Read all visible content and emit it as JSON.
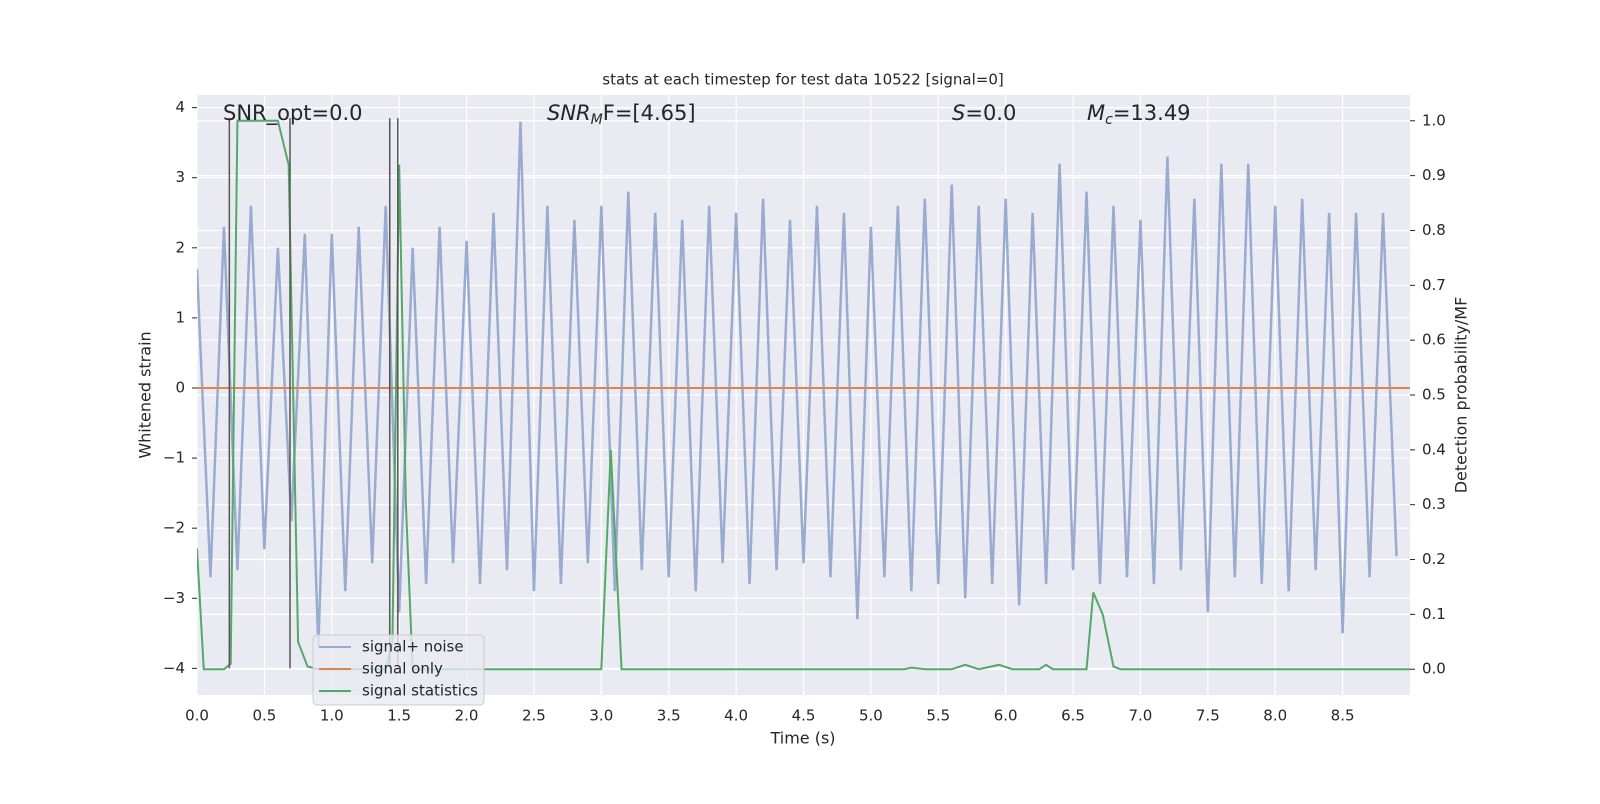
{
  "chart_data": {
    "type": "line",
    "title": "stats at each timestep for test data 10522 [signal=0]",
    "xlabel": "Time (s)",
    "ylabel": "Whitened strain",
    "y2label": "Detection probability/MF",
    "xlim": [
      0,
      9.0
    ],
    "ylim": [
      -4.38,
      4.18
    ],
    "y2lim": [
      -0.047,
      1.047
    ],
    "xticks": [
      {
        "value": 0,
        "label": "0.0"
      },
      0.5,
      {
        "value": 1,
        "label": "1.0"
      },
      1.5,
      {
        "value": 2,
        "label": "2.0"
      },
      2.5,
      {
        "value": 3,
        "label": "3.0"
      },
      3.5,
      {
        "value": 4,
        "label": "4.0"
      },
      4.5,
      {
        "value": 5,
        "label": "5.0"
      },
      5.5,
      {
        "value": 6,
        "label": "6.0"
      },
      6.5,
      {
        "value": 7,
        "label": "7.0"
      },
      7.5,
      {
        "value": 8,
        "label": "8.0"
      },
      8.5
    ],
    "yticks": [
      {
        "value": -4,
        "label": "−4"
      },
      {
        "value": -3,
        "label": "−3"
      },
      {
        "value": -2,
        "label": "−2"
      },
      {
        "value": -1,
        "label": "−1"
      },
      0,
      1,
      2,
      3,
      4
    ],
    "y2ticks": [
      {
        "value": 0,
        "label": "0.0"
      },
      0.1,
      0.2,
      0.3,
      0.4,
      0.5,
      0.6,
      0.7,
      0.8,
      0.9,
      {
        "value": 1,
        "label": "1.0"
      }
    ],
    "grid": true,
    "legend": "lower left",
    "series": [
      {
        "name": "signal+ noise",
        "color": "#9aabd0",
        "x": [
          0.0,
          0.1,
          0.2,
          0.3,
          0.4,
          0.5,
          0.6,
          0.7,
          0.8,
          0.9,
          1.0,
          1.1,
          1.2,
          1.3,
          1.4,
          1.5,
          1.6,
          1.7,
          1.8,
          1.9,
          2.0,
          2.1,
          2.2,
          2.3,
          2.4,
          2.5,
          2.6,
          2.7,
          2.8,
          2.9,
          3.0,
          3.1,
          3.2,
          3.3,
          3.4,
          3.5,
          3.6,
          3.7,
          3.8,
          3.9,
          4.0,
          4.1,
          4.2,
          4.3,
          4.4,
          4.5,
          4.6,
          4.7,
          4.8,
          4.9,
          5.0,
          5.1,
          5.2,
          5.3,
          5.4,
          5.5,
          5.6,
          5.7,
          5.8,
          5.9,
          6.0,
          6.1,
          6.2,
          6.3,
          6.4,
          6.5,
          6.6,
          6.7,
          6.8,
          6.9,
          7.0,
          7.1,
          7.2,
          7.3,
          7.4,
          7.5,
          7.6,
          7.7,
          7.8,
          7.9,
          8.0,
          8.1,
          8.2,
          8.3,
          8.4,
          8.5,
          8.6,
          8.7,
          8.8,
          8.9
        ],
        "values": [
          1.7,
          -2.7,
          2.3,
          -2.6,
          2.6,
          -2.3,
          2.0,
          -1.9,
          2.2,
          -3.7,
          2.2,
          -2.9,
          2.3,
          -2.5,
          2.6,
          -3.2,
          2.0,
          -2.8,
          2.3,
          -2.5,
          2.1,
          -2.8,
          2.5,
          -2.6,
          3.8,
          -2.9,
          2.6,
          -2.8,
          2.4,
          -2.5,
          2.6,
          -2.9,
          2.8,
          -2.6,
          2.5,
          -2.7,
          2.4,
          -2.9,
          2.6,
          -2.5,
          2.5,
          -2.8,
          2.7,
          -2.6,
          2.4,
          -2.5,
          2.6,
          -2.7,
          2.5,
          -3.3,
          2.3,
          -2.7,
          2.6,
          -2.9,
          2.7,
          -2.8,
          2.9,
          -3.0,
          2.6,
          -2.8,
          2.7,
          -3.1,
          2.5,
          -2.8,
          3.2,
          -2.6,
          2.8,
          -2.8,
          2.6,
          -2.7,
          2.4,
          -2.8,
          3.3,
          -2.6,
          2.7,
          -3.2,
          3.2,
          -2.7,
          3.2,
          -2.8,
          2.6,
          -2.9,
          2.7,
          -2.6,
          2.5,
          -3.5,
          2.5,
          -2.7,
          2.5,
          -2.4
        ]
      },
      {
        "name": "signal only",
        "color": "#dd8452",
        "x": [
          0,
          9.0
        ],
        "values": [
          0,
          0
        ]
      },
      {
        "name": "signal statistics",
        "color": "#55a868",
        "axis": "y2",
        "x": [
          0,
          0.05,
          0.2,
          0.25,
          0.3,
          0.6,
          0.68,
          0.75,
          0.82,
          0.9,
          1.4,
          1.45,
          1.5,
          1.55,
          1.6,
          3.0,
          3.07,
          3.15,
          3.2,
          5.25,
          5.3,
          5.4,
          5.6,
          5.7,
          5.8,
          5.95,
          6.05,
          6.25,
          6.3,
          6.35,
          6.6,
          6.65,
          6.72,
          6.8,
          6.85,
          9.0
        ],
        "values": [
          0.22,
          0,
          0,
          0.01,
          1.0,
          1.0,
          0.92,
          0.05,
          0.005,
          0,
          0,
          0.05,
          0.92,
          0.3,
          0,
          0,
          0.4,
          0,
          0,
          0,
          0.003,
          0,
          0,
          0.008,
          0,
          0.008,
          0,
          0,
          0.008,
          0,
          0,
          0.14,
          0.1,
          0.005,
          0,
          0
        ]
      }
    ],
    "vlines": {
      "x": [
        0.24,
        0.69,
        1.43,
        1.49
      ],
      "ymin": -4.0,
      "ymax": 3.85,
      "color": "#555555"
    },
    "annotations": [
      {
        "text": "SNR_opt=0.0"
      },
      {
        "main": "SNR",
        "sub": "M",
        "rest": "F=[4.65]"
      },
      {
        "main": "S",
        "rest": "=0.0"
      },
      {
        "main": "M",
        "sub": "c",
        "rest": "=13.49"
      }
    ]
  }
}
